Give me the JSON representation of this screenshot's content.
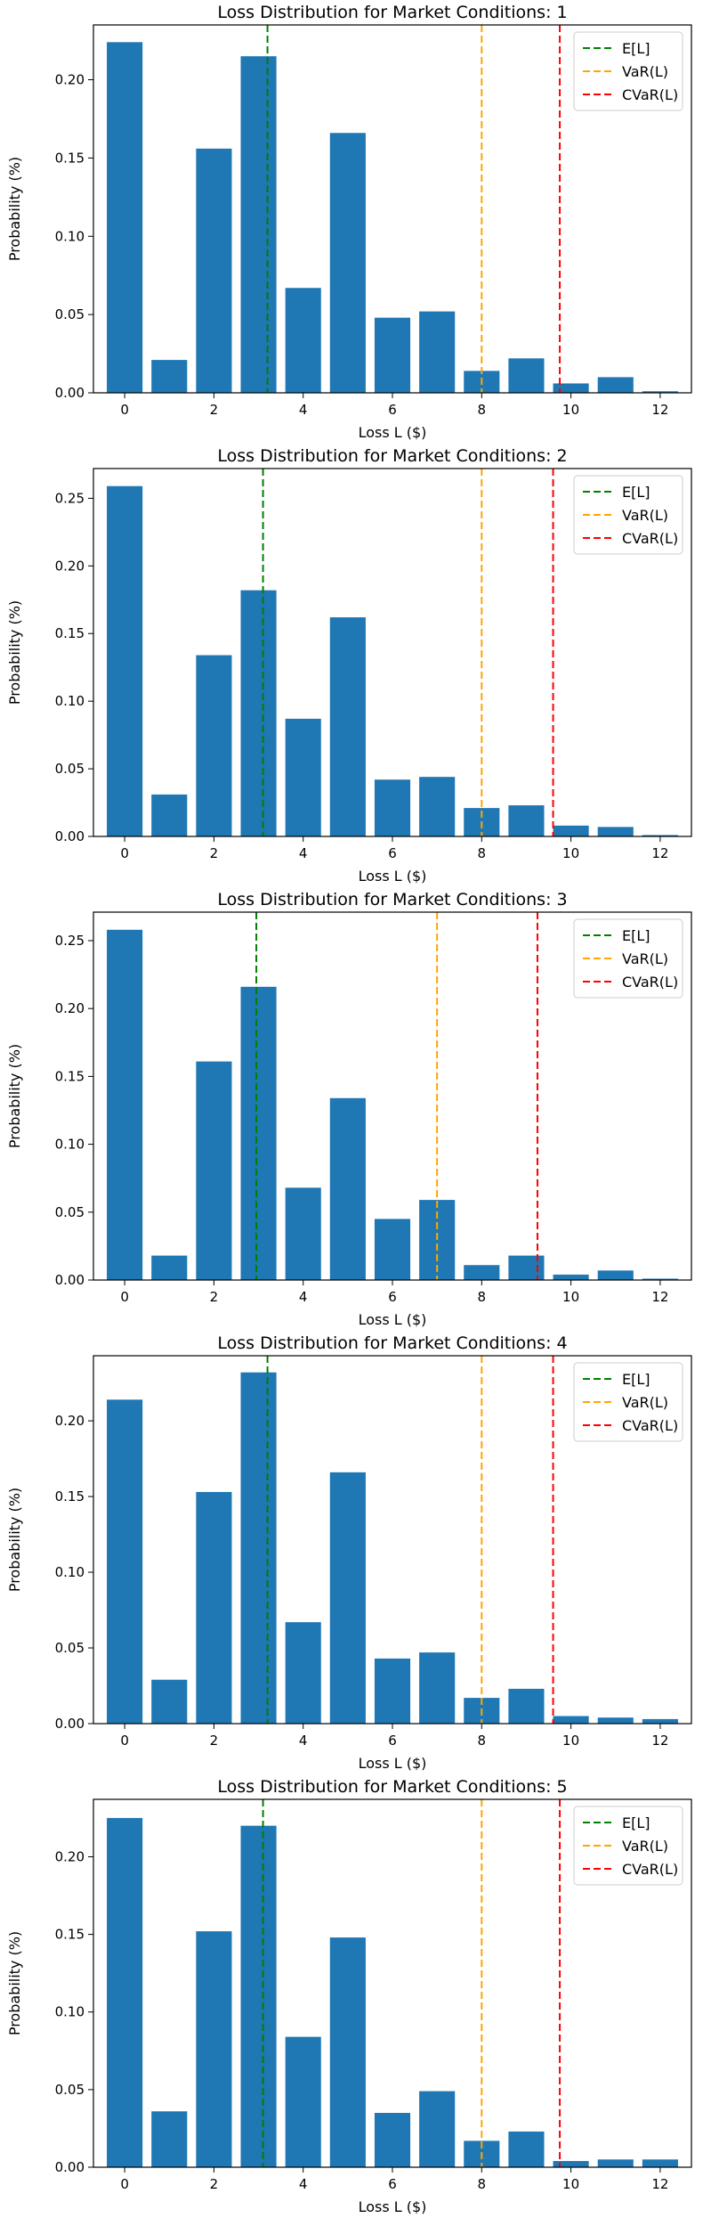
{
  "chart_data": [
    {
      "type": "bar",
      "title": "Loss Distribution for Market Conditions: 1",
      "xlabel": "Loss L ($)",
      "ylabel": "Probability (%)",
      "categories": [
        0,
        1,
        2,
        3,
        4,
        5,
        6,
        7,
        8,
        9,
        10,
        11,
        12
      ],
      "values": [
        0.224,
        0.021,
        0.156,
        0.215,
        0.067,
        0.166,
        0.048,
        0.052,
        0.014,
        0.022,
        0.006,
        0.01,
        0.001
      ],
      "ylim": [
        0,
        0.235
      ],
      "yticks": [
        0.0,
        0.05,
        0.1,
        0.15,
        0.2
      ],
      "ytick_labels": [
        "0.00",
        "0.05",
        "0.10",
        "0.15",
        "0.20"
      ],
      "xticks": [
        0,
        2,
        4,
        6,
        8,
        10,
        12
      ],
      "xtick_labels": [
        "0",
        "2",
        "4",
        "6",
        "8",
        "10",
        "12"
      ],
      "lines": [
        {
          "label": "E[L]",
          "x": 3.2,
          "color": "#008000"
        },
        {
          "label": "VaR(L)",
          "x": 8,
          "color": "#ffa500"
        },
        {
          "label": "CVaR(L)",
          "x": 9.75,
          "color": "#ff0000"
        }
      ],
      "legend": "top-right",
      "grid": false
    },
    {
      "type": "bar",
      "title": "Loss Distribution for Market Conditions: 2",
      "xlabel": "Loss L ($)",
      "ylabel": "Probability (%)",
      "categories": [
        0,
        1,
        2,
        3,
        4,
        5,
        6,
        7,
        8,
        9,
        10,
        11,
        12
      ],
      "values": [
        0.259,
        0.031,
        0.134,
        0.182,
        0.087,
        0.162,
        0.042,
        0.044,
        0.021,
        0.023,
        0.008,
        0.007,
        0.001
      ],
      "ylim": [
        0,
        0.272
      ],
      "yticks": [
        0.0,
        0.05,
        0.1,
        0.15,
        0.2,
        0.25
      ],
      "ytick_labels": [
        "0.00",
        "0.05",
        "0.10",
        "0.15",
        "0.20",
        "0.25"
      ],
      "xticks": [
        0,
        2,
        4,
        6,
        8,
        10,
        12
      ],
      "xtick_labels": [
        "0",
        "2",
        "4",
        "6",
        "8",
        "10",
        "12"
      ],
      "lines": [
        {
          "label": "E[L]",
          "x": 3.1,
          "color": "#008000"
        },
        {
          "label": "VaR(L)",
          "x": 8,
          "color": "#ffa500"
        },
        {
          "label": "CVaR(L)",
          "x": 9.6,
          "color": "#ff0000"
        }
      ],
      "legend": "top-right",
      "grid": false
    },
    {
      "type": "bar",
      "title": "Loss Distribution for Market Conditions: 3",
      "xlabel": "Loss L ($)",
      "ylabel": "Probability (%)",
      "categories": [
        0,
        1,
        2,
        3,
        4,
        5,
        6,
        7,
        8,
        9,
        10,
        11,
        12
      ],
      "values": [
        0.258,
        0.018,
        0.161,
        0.216,
        0.068,
        0.134,
        0.045,
        0.059,
        0.011,
        0.018,
        0.004,
        0.007,
        0.001
      ],
      "ylim": [
        0,
        0.271
      ],
      "yticks": [
        0.0,
        0.05,
        0.1,
        0.15,
        0.2,
        0.25
      ],
      "ytick_labels": [
        "0.00",
        "0.05",
        "0.10",
        "0.15",
        "0.20",
        "0.25"
      ],
      "xticks": [
        0,
        2,
        4,
        6,
        8,
        10,
        12
      ],
      "xtick_labels": [
        "0",
        "2",
        "4",
        "6",
        "8",
        "10",
        "12"
      ],
      "lines": [
        {
          "label": "E[L]",
          "x": 2.95,
          "color": "#008000"
        },
        {
          "label": "VaR(L)",
          "x": 7,
          "color": "#ffa500"
        },
        {
          "label": "CVaR(L)",
          "x": 9.25,
          "color": "#ff0000"
        }
      ],
      "legend": "top-right",
      "grid": false
    },
    {
      "type": "bar",
      "title": "Loss Distribution for Market Conditions: 4",
      "xlabel": "Loss L ($)",
      "ylabel": "Probability (%)",
      "categories": [
        0,
        1,
        2,
        3,
        4,
        5,
        6,
        7,
        8,
        9,
        10,
        11,
        12
      ],
      "values": [
        0.214,
        0.029,
        0.153,
        0.232,
        0.067,
        0.166,
        0.043,
        0.047,
        0.017,
        0.023,
        0.005,
        0.004,
        0.003
      ],
      "ylim": [
        0,
        0.243
      ],
      "yticks": [
        0.0,
        0.05,
        0.1,
        0.15,
        0.2
      ],
      "ytick_labels": [
        "0.00",
        "0.05",
        "0.10",
        "0.15",
        "0.20"
      ],
      "xticks": [
        0,
        2,
        4,
        6,
        8,
        10,
        12
      ],
      "xtick_labels": [
        "0",
        "2",
        "4",
        "6",
        "8",
        "10",
        "12"
      ],
      "lines": [
        {
          "label": "E[L]",
          "x": 3.2,
          "color": "#008000"
        },
        {
          "label": "VaR(L)",
          "x": 8,
          "color": "#ffa500"
        },
        {
          "label": "CVaR(L)",
          "x": 9.6,
          "color": "#ff0000"
        }
      ],
      "legend": "top-right",
      "grid": false
    },
    {
      "type": "bar",
      "title": "Loss Distribution for Market Conditions: 5",
      "xlabel": "Loss L ($)",
      "ylabel": "Probability (%)",
      "categories": [
        0,
        1,
        2,
        3,
        4,
        5,
        6,
        7,
        8,
        9,
        10,
        11,
        12
      ],
      "values": [
        0.225,
        0.036,
        0.152,
        0.22,
        0.084,
        0.148,
        0.035,
        0.049,
        0.017,
        0.023,
        0.004,
        0.005,
        0.005
      ],
      "ylim": [
        0,
        0.237
      ],
      "yticks": [
        0.0,
        0.05,
        0.1,
        0.15,
        0.2
      ],
      "ytick_labels": [
        "0.00",
        "0.05",
        "0.10",
        "0.15",
        "0.20"
      ],
      "xticks": [
        0,
        2,
        4,
        6,
        8,
        10,
        12
      ],
      "xtick_labels": [
        "0",
        "2",
        "4",
        "6",
        "8",
        "10",
        "12"
      ],
      "lines": [
        {
          "label": "E[L]",
          "x": 3.1,
          "color": "#008000"
        },
        {
          "label": "VaR(L)",
          "x": 8,
          "color": "#ffa500"
        },
        {
          "label": "CVaR(L)",
          "x": 9.75,
          "color": "#ff0000"
        }
      ],
      "legend": "top-right",
      "grid": false
    }
  ],
  "style": {
    "bar_color": "#1f77b4",
    "axis_color": "#000000"
  }
}
